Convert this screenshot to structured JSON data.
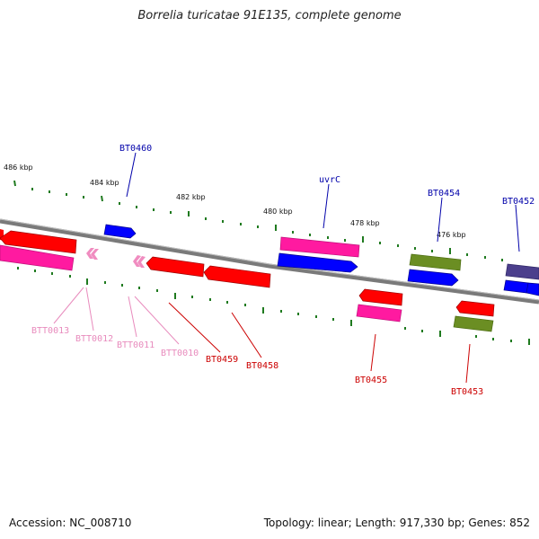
{
  "title": "Borrelia turicatae 91E135, complete genome",
  "footer": {
    "accession": "Accession: NC_008710",
    "summary": "Topology: linear; Length: 917,330 bp; Genes: 852"
  },
  "colors": {
    "background": "#ffffff",
    "backbone": "#7a7a7a",
    "tick": "#1f7a1f",
    "red_gene": "#ff0000",
    "pink_gene": "#ff1aa0",
    "blue_gene": "#0000ff",
    "olive_gene": "#6b8e23",
    "slate_gene": "#4b3f8c",
    "label_blue": "#0000aa",
    "label_red": "#cc0000",
    "label_pink": "#e88bbd"
  },
  "scale_labels": [
    "486 kbp",
    "484 kbp",
    "482 kbp",
    "480 kbp",
    "478 kbp",
    "476 kbp"
  ],
  "genes": [
    {
      "name": "BT0460",
      "color_key": "label_blue"
    },
    {
      "name": "uvrC",
      "color_key": "label_blue"
    },
    {
      "name": "BT0454",
      "color_key": "label_blue"
    },
    {
      "name": "BT0452",
      "color_key": "label_blue"
    },
    {
      "name": "BTT0013",
      "color_key": "label_pink"
    },
    {
      "name": "BTT0012",
      "color_key": "label_pink"
    },
    {
      "name": "BTT0011",
      "color_key": "label_pink"
    },
    {
      "name": "BTT0010",
      "color_key": "label_pink"
    },
    {
      "name": "BT0459",
      "color_key": "label_red"
    },
    {
      "name": "BT0458",
      "color_key": "label_red"
    },
    {
      "name": "BT0455",
      "color_key": "label_red"
    },
    {
      "name": "BT0453",
      "color_key": "label_red"
    }
  ]
}
